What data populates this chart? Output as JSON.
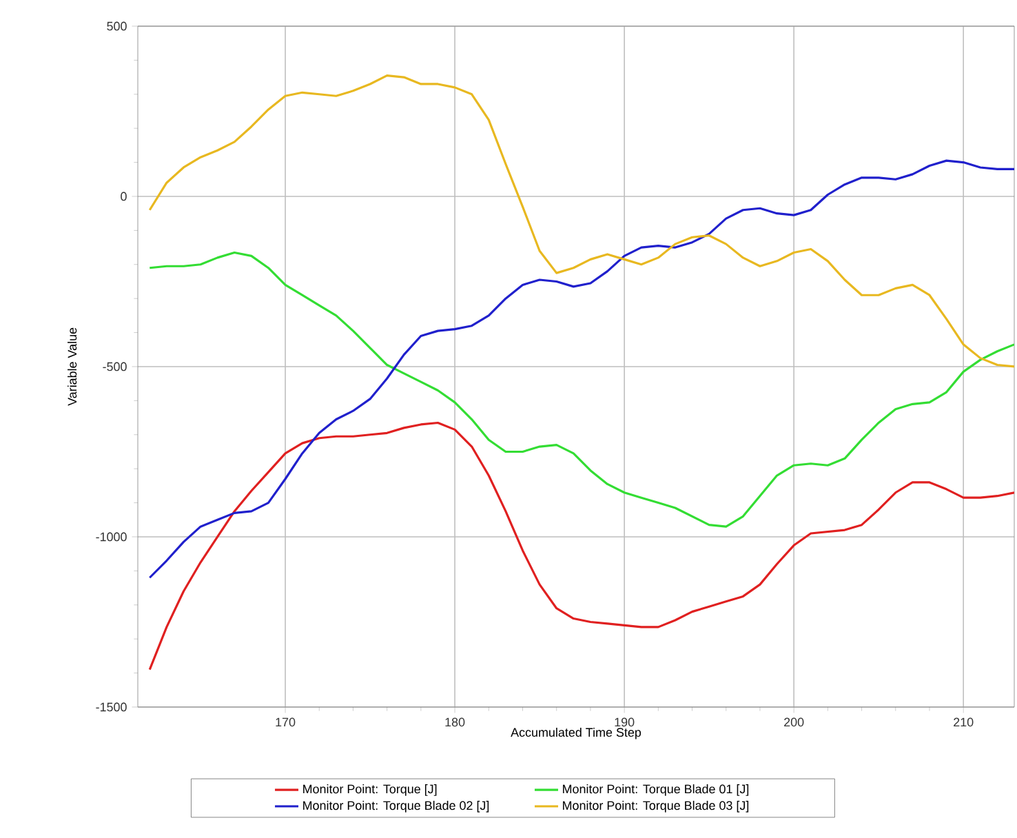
{
  "chart_data": {
    "type": "line",
    "xlabel": "Accumulated Time Step",
    "ylabel": "Variable Value",
    "x": [
      162,
      163,
      164,
      165,
      166,
      167,
      168,
      169,
      170,
      171,
      172,
      173,
      174,
      175,
      176,
      177,
      178,
      179,
      180,
      181,
      182,
      183,
      184,
      185,
      186,
      187,
      188,
      189,
      190,
      191,
      192,
      193,
      194,
      195,
      196,
      197,
      198,
      199,
      200,
      201,
      202,
      203,
      204,
      205,
      206,
      207,
      208,
      209,
      210,
      211,
      212,
      213
    ],
    "series": [
      {
        "name": "Monitor Point: Torque [J]",
        "color": "#e02020",
        "values": [
          -1390,
          -1265,
          -1160,
          -1075,
          -1000,
          -925,
          -865,
          -810,
          -755,
          -725,
          -710,
          -705,
          -705,
          -700,
          -695,
          -680,
          -670,
          -665,
          -685,
          -735,
          -820,
          -925,
          -1040,
          -1140,
          -1210,
          -1240,
          -1250,
          -1255,
          -1260,
          -1265,
          -1265,
          -1245,
          -1220,
          -1205,
          -1190,
          -1175,
          -1140,
          -1080,
          -1025,
          -990,
          -985,
          -980,
          -965,
          -920,
          -870,
          -840,
          -840,
          -860,
          -885,
          -885,
          -880,
          -870
        ]
      },
      {
        "name": "Monitor Point: Torque Blade 01 [J]",
        "color": "#33dd33",
        "values": [
          -210,
          -205,
          -205,
          -200,
          -180,
          -165,
          -175,
          -210,
          -260,
          -290,
          -320,
          -350,
          -395,
          -445,
          -495,
          -520,
          -545,
          -570,
          -605,
          -655,
          -715,
          -750,
          -750,
          -735,
          -730,
          -755,
          -805,
          -845,
          -870,
          -885,
          -900,
          -915,
          -940,
          -965,
          -970,
          -940,
          -880,
          -820,
          -790,
          -785,
          -790,
          -770,
          -715,
          -665,
          -625,
          -610,
          -605,
          -575,
          -515,
          -480,
          -455,
          -435
        ]
      },
      {
        "name": "Monitor Point: Torque Blade 02 [J]",
        "color": "#2020cc",
        "values": [
          -1120,
          -1070,
          -1015,
          -970,
          -950,
          -930,
          -925,
          -900,
          -830,
          -755,
          -695,
          -655,
          -630,
          -595,
          -535,
          -465,
          -410,
          -395,
          -390,
          -380,
          -350,
          -300,
          -260,
          -245,
          -250,
          -265,
          -255,
          -220,
          -175,
          -150,
          -145,
          -150,
          -135,
          -110,
          -65,
          -40,
          -35,
          -50,
          -55,
          -40,
          5,
          35,
          55,
          55,
          50,
          65,
          90,
          105,
          100,
          85,
          80,
          80
        ]
      },
      {
        "name": "Monitor Point: Torque Blade 03 [J]",
        "color": "#e8b820",
        "values": [
          -40,
          40,
          85,
          115,
          135,
          160,
          205,
          255,
          295,
          305,
          300,
          295,
          310,
          330,
          355,
          350,
          330,
          330,
          320,
          300,
          225,
          95,
          -30,
          -160,
          -225,
          -210,
          -185,
          -170,
          -185,
          -200,
          -180,
          -140,
          -120,
          -115,
          -140,
          -180,
          -205,
          -190,
          -165,
          -155,
          -190,
          -245,
          -290,
          -290,
          -270,
          -260,
          -290,
          -360,
          -435,
          -475,
          -495,
          -500
        ]
      }
    ],
    "xlim": [
      161.3,
      213
    ],
    "ylim": [
      -1500,
      500
    ],
    "xticks": [
      170,
      180,
      190,
      200,
      210
    ],
    "yticks": [
      -1500,
      -1000,
      -500,
      0,
      500
    ],
    "grid": true,
    "legend": "bottom",
    "marker": "none",
    "line_style": "solid"
  }
}
